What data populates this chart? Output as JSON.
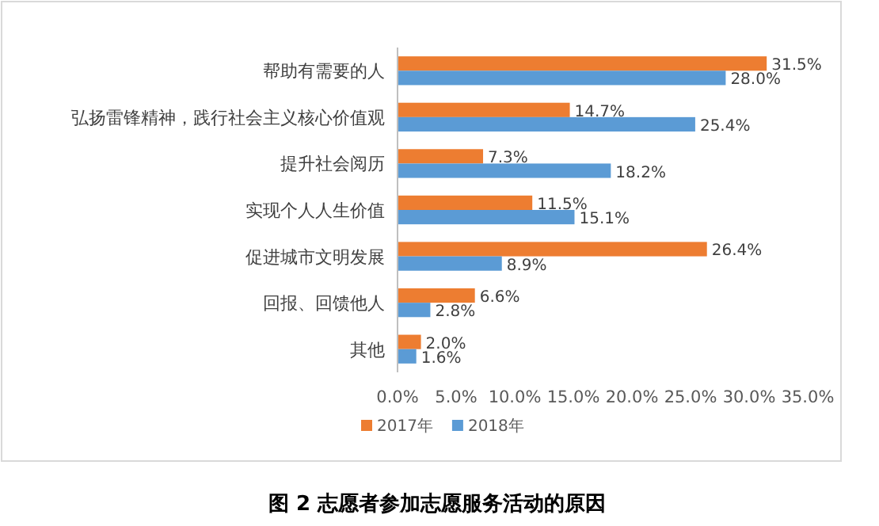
{
  "chart_data": {
    "type": "bar",
    "orientation": "horizontal",
    "title": "图 2 志愿者参加志愿服务活动的原因",
    "categories": [
      "帮助有需要的人",
      "弘扬雷锋精神，践行社会主义核心价值观",
      "提升社会阅历",
      "实现个人人生价值",
      "促进城市文明发展",
      "回报、回馈他人",
      "其他"
    ],
    "series": [
      {
        "name": "2017年",
        "color": "#ed7d31",
        "values": [
          31.5,
          14.7,
          7.3,
          11.5,
          26.4,
          6.6,
          2.0
        ],
        "value_labels": [
          "31.5%",
          "14.7%",
          "7.3%",
          "11.5%",
          "26.4%",
          "6.6%",
          "2.0%"
        ]
      },
      {
        "name": "2018年",
        "color": "#5b9bd5",
        "values": [
          28.0,
          25.4,
          18.2,
          15.1,
          8.9,
          2.8,
          1.6
        ],
        "value_labels": [
          "28.0%",
          "25.4%",
          "18.2%",
          "15.1%",
          "8.9%",
          "2.8%",
          "1.6%"
        ]
      }
    ],
    "xlim": [
      0,
      35
    ],
    "xticks": [
      {
        "value": 0,
        "label": "0.0%"
      },
      {
        "value": 5,
        "label": "5.0%"
      },
      {
        "value": 10,
        "label": "10.0%"
      },
      {
        "value": 15,
        "label": "15.0%"
      },
      {
        "value": 20,
        "label": "20.0%"
      },
      {
        "value": 25,
        "label": "25.0%"
      },
      {
        "value": 30,
        "label": "30.0%"
      },
      {
        "value": 35,
        "label": "35.0%"
      }
    ],
    "grid": false,
    "legend": "bottom"
  }
}
